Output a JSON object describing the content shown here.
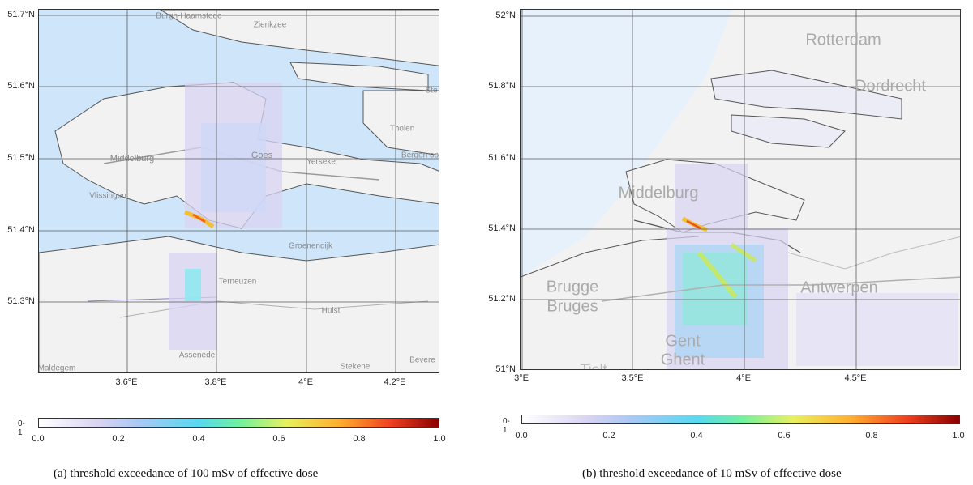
{
  "panel_a": {
    "lat_labels": [
      "51.7°N",
      "51.6°N",
      "51.5°N",
      "51.4°N",
      "51.3°N"
    ],
    "lon_labels": [
      "3.6°E",
      "3.8°E",
      "4°E",
      "4.2°E"
    ],
    "places": [
      {
        "name": "Burgh-Haamstede"
      },
      {
        "name": "Zierikzee"
      },
      {
        "name": "Middelburg"
      },
      {
        "name": "Goes"
      },
      {
        "name": "Yerseke"
      },
      {
        "name": "Vlissingen"
      },
      {
        "name": "Groenendijk"
      },
      {
        "name": "Terneuzen"
      },
      {
        "name": "Hulst"
      },
      {
        "name": "Assenede"
      },
      {
        "name": "Maldegem"
      },
      {
        "name": "Stekene"
      },
      {
        "name": "Bevere"
      },
      {
        "name": "Bergen op"
      },
      {
        "name": "Tholen"
      },
      {
        "name": "Ste"
      }
    ],
    "colorbar": {
      "unit": "0-1",
      "ticks": [
        "0.0",
        "0.2",
        "0.4",
        "0.6",
        "0.8",
        "1.0"
      ]
    },
    "caption": "(a)   threshold exceedance of 100 mSv of effective dose"
  },
  "panel_b": {
    "lat_labels": [
      "52°N",
      "51.8°N",
      "51.6°N",
      "51.4°N",
      "51.2°N",
      "51°N"
    ],
    "lon_labels": [
      "3°E",
      "3.5°E",
      "4°E",
      "4.5°E"
    ],
    "places": [
      {
        "name": "Rotterdam"
      },
      {
        "name": "Dordrecht"
      },
      {
        "name": "Middelburg"
      },
      {
        "name": "Brugge"
      },
      {
        "name": "Bruges"
      },
      {
        "name": "Antwerpen"
      },
      {
        "name": "Gent"
      },
      {
        "name": "Ghent"
      },
      {
        "name": "Tielt"
      }
    ],
    "colorbar": {
      "unit": "0-1",
      "ticks": [
        "0.0",
        "0.2",
        "0.4",
        "0.6",
        "0.8",
        "1.0"
      ]
    },
    "caption": "(b)   threshold exceedance of 10 mSv of effective dose"
  },
  "colors": {
    "water": "#cfe6fa",
    "land": "#f2f2f2",
    "grid": "#5a5a5a",
    "low_prob": "#d8d3f2",
    "mid_prob": "#58d9f0",
    "high_prob": "#f0e040",
    "peak_prob": "#f04020"
  }
}
